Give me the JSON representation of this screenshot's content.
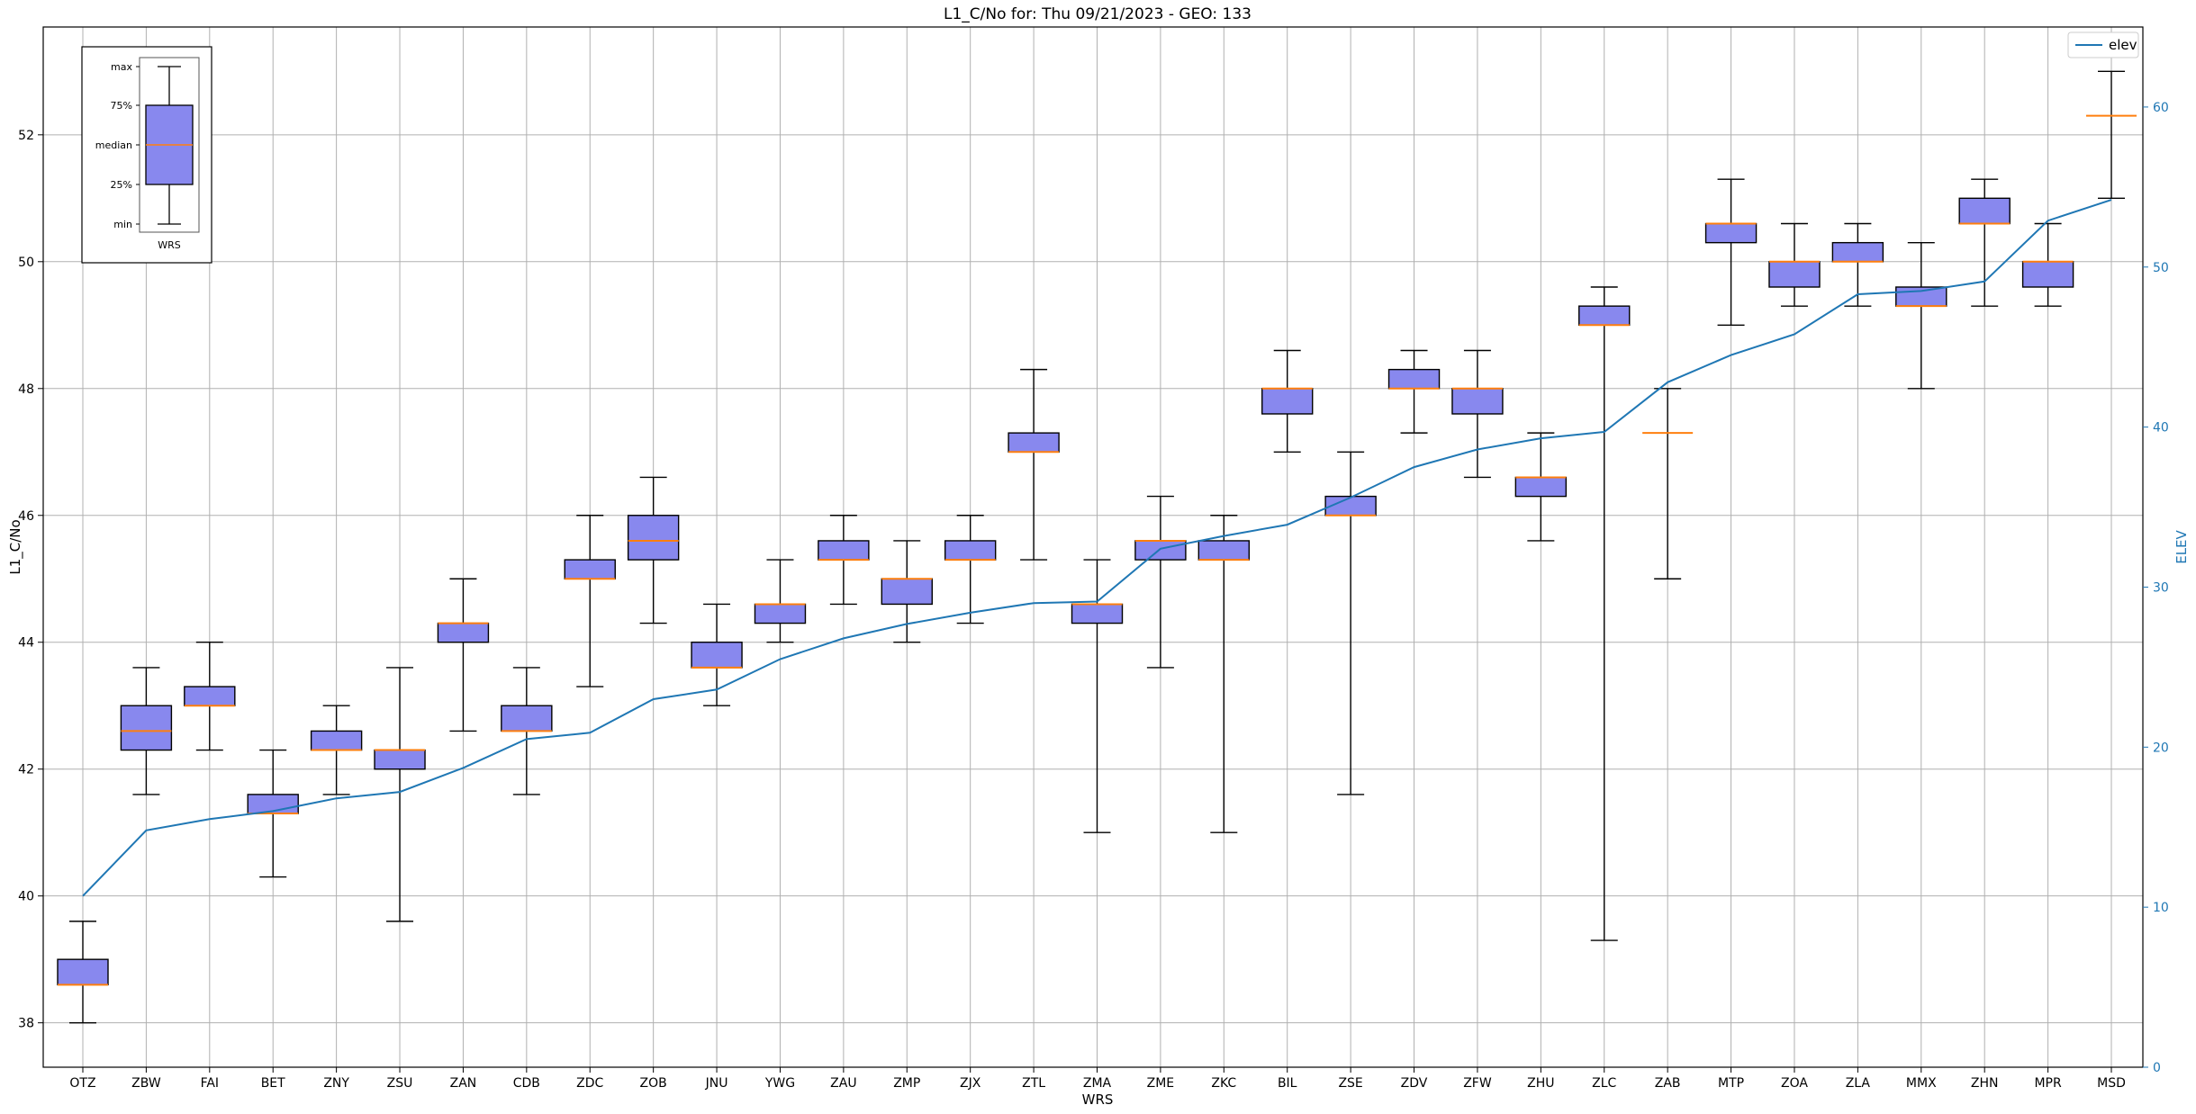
{
  "chart_data": {
    "type": "box",
    "title": "L1_C/No for: Thu 09/21/2023 - GEO: 133",
    "xlabel": "WRS",
    "ylabel": "L1_C/No",
    "y2label": "ELEV",
    "ylim": [
      37.3,
      53.7
    ],
    "y2lim": [
      0,
      65
    ],
    "yticks": [
      38,
      40,
      42,
      44,
      46,
      48,
      50,
      52
    ],
    "y2ticks": [
      0,
      10,
      20,
      30,
      40,
      50,
      60
    ],
    "grid": true,
    "legend": {
      "placement": "top-right",
      "entries": [
        {
          "label": "elev",
          "color": "#1f77b4"
        }
      ]
    },
    "box_color": "#8888ee",
    "median_color": "#ff7f0e",
    "line_color": "#1f77b4",
    "boxes": [
      {
        "label": "OTZ",
        "min": 38.0,
        "q1": 38.6,
        "median": 38.6,
        "q3": 39.0,
        "max": 39.6
      },
      {
        "label": "ZBW",
        "min": 41.6,
        "q1": 42.3,
        "median": 42.6,
        "q3": 43.0,
        "max": 43.6
      },
      {
        "label": "FAI",
        "min": 42.3,
        "q1": 43.0,
        "median": 43.0,
        "q3": 43.3,
        "max": 44.0
      },
      {
        "label": "BET",
        "min": 40.3,
        "q1": 41.3,
        "median": 41.3,
        "q3": 41.6,
        "max": 42.3
      },
      {
        "label": "ZNY",
        "min": 41.6,
        "q1": 42.3,
        "median": 42.3,
        "q3": 42.6,
        "max": 43.0
      },
      {
        "label": "ZSU",
        "min": 39.6,
        "q1": 42.0,
        "median": 42.3,
        "q3": 42.3,
        "max": 43.6
      },
      {
        "label": "ZAN",
        "min": 42.6,
        "q1": 44.0,
        "median": 44.3,
        "q3": 44.3,
        "max": 45.0
      },
      {
        "label": "CDB",
        "min": 41.6,
        "q1": 42.6,
        "median": 42.6,
        "q3": 43.0,
        "max": 43.6
      },
      {
        "label": "ZDC",
        "min": 43.3,
        "q1": 45.0,
        "median": 45.0,
        "q3": 45.3,
        "max": 46.0
      },
      {
        "label": "ZOB",
        "min": 44.3,
        "q1": 45.3,
        "median": 45.6,
        "q3": 46.0,
        "max": 46.6
      },
      {
        "label": "JNU",
        "min": 43.0,
        "q1": 43.6,
        "median": 43.6,
        "q3": 44.0,
        "max": 44.6
      },
      {
        "label": "YWG",
        "min": 44.0,
        "q1": 44.3,
        "median": 44.6,
        "q3": 44.6,
        "max": 45.3
      },
      {
        "label": "ZAU",
        "min": 44.6,
        "q1": 45.3,
        "median": 45.3,
        "q3": 45.6,
        "max": 46.0
      },
      {
        "label": "ZMP",
        "min": 44.0,
        "q1": 44.6,
        "median": 45.0,
        "q3": 45.0,
        "max": 45.6
      },
      {
        "label": "ZJX",
        "min": 44.3,
        "q1": 45.3,
        "median": 45.3,
        "q3": 45.6,
        "max": 46.0
      },
      {
        "label": "ZTL",
        "min": 45.3,
        "q1": 47.0,
        "median": 47.0,
        "q3": 47.3,
        "max": 48.3
      },
      {
        "label": "ZMA",
        "min": 41.0,
        "q1": 44.3,
        "median": 44.6,
        "q3": 44.6,
        "max": 45.3
      },
      {
        "label": "ZME",
        "min": 43.6,
        "q1": 45.3,
        "median": 45.6,
        "q3": 45.6,
        "max": 46.3
      },
      {
        "label": "ZKC",
        "min": 41.0,
        "q1": 45.3,
        "median": 45.3,
        "q3": 45.6,
        "max": 46.0
      },
      {
        "label": "BIL",
        "min": 47.0,
        "q1": 47.6,
        "median": 48.0,
        "q3": 48.0,
        "max": 48.6
      },
      {
        "label": "ZSE",
        "min": 41.6,
        "q1": 46.0,
        "median": 46.0,
        "q3": 46.3,
        "max": 47.0
      },
      {
        "label": "ZDV",
        "min": 47.3,
        "q1": 48.0,
        "median": 48.0,
        "q3": 48.3,
        "max": 48.6
      },
      {
        "label": "ZFW",
        "min": 46.6,
        "q1": 47.6,
        "median": 48.0,
        "q3": 48.0,
        "max": 48.6
      },
      {
        "label": "ZHU",
        "min": 45.6,
        "q1": 46.3,
        "median": 46.6,
        "q3": 46.6,
        "max": 47.3
      },
      {
        "label": "ZLC",
        "min": 39.3,
        "q1": 49.0,
        "median": 49.0,
        "q3": 49.3,
        "max": 49.6
      },
      {
        "label": "ZAB",
        "min": 45.0,
        "q1": 47.3,
        "median": 47.3,
        "q3": 47.3,
        "max": 48.0
      },
      {
        "label": "MTP",
        "min": 49.0,
        "q1": 50.3,
        "median": 50.6,
        "q3": 50.6,
        "max": 51.3
      },
      {
        "label": "ZOA",
        "min": 49.3,
        "q1": 49.6,
        "median": 50.0,
        "q3": 50.0,
        "max": 50.6
      },
      {
        "label": "ZLA",
        "min": 49.3,
        "q1": 50.0,
        "median": 50.0,
        "q3": 50.3,
        "max": 50.6
      },
      {
        "label": "MMX",
        "min": 48.0,
        "q1": 49.3,
        "median": 49.3,
        "q3": 49.6,
        "max": 50.3
      },
      {
        "label": "ZHN",
        "min": 49.3,
        "q1": 50.6,
        "median": 50.6,
        "q3": 51.0,
        "max": 51.3
      },
      {
        "label": "MPR",
        "min": 49.3,
        "q1": 49.6,
        "median": 50.0,
        "q3": 50.0,
        "max": 50.6
      },
      {
        "label": "MSD",
        "min": 51.0,
        "q1": 52.3,
        "median": 52.3,
        "q3": 52.3,
        "max": 53.0
      }
    ],
    "elev": [
      10.7,
      14.8,
      15.5,
      16.0,
      16.8,
      17.2,
      18.7,
      20.5,
      20.9,
      23.0,
      23.6,
      25.5,
      26.8,
      27.7,
      28.4,
      29.0,
      29.1,
      32.4,
      33.2,
      33.9,
      35.6,
      37.5,
      38.6,
      39.3,
      39.7,
      42.8,
      44.5,
      45.8,
      48.3,
      48.5,
      49.1,
      52.9,
      54.2
    ],
    "inset_legend": {
      "labels": [
        "max",
        "75%",
        "median",
        "25%",
        "min"
      ],
      "xlabel": "WRS"
    }
  }
}
